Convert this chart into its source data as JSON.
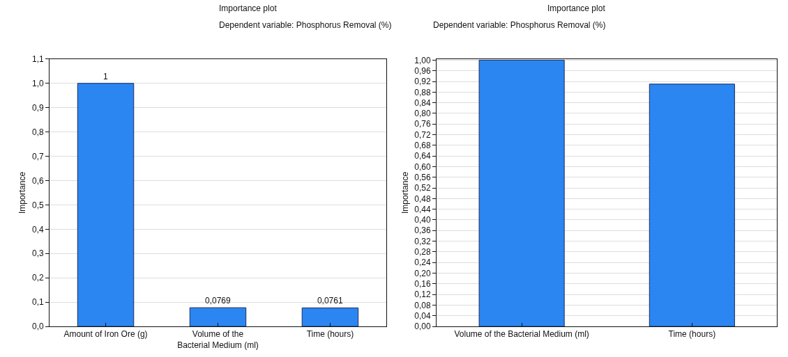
{
  "chart_data": [
    {
      "type": "bar",
      "title": "Importance plot",
      "subtitle": "Dependent variable: Phosphorus Removal (%)",
      "ylabel": "Importance",
      "categories": [
        "Amount of Iron Ore (g)",
        "Volume of the Bacterial Medium (ml)",
        "Time (hours)"
      ],
      "values": [
        1,
        0.0769,
        0.0761
      ],
      "value_labels": [
        "1",
        "0,0769",
        "0,0761"
      ],
      "color": "#2b86f2",
      "ylim": [
        0,
        1.1
      ],
      "yticks": [
        {
          "value": 0,
          "label": "0,0"
        },
        {
          "value": 0.1,
          "label": "0,1"
        },
        {
          "value": 0.2,
          "label": "0,2"
        },
        {
          "value": 0.3,
          "label": "0,3"
        },
        {
          "value": 0.4,
          "label": "0,4"
        },
        {
          "value": 0.5,
          "label": "0,5"
        },
        {
          "value": 0.6,
          "label": "0,6"
        },
        {
          "value": 0.7,
          "label": "0,7"
        },
        {
          "value": 0.8,
          "label": "0,8"
        },
        {
          "value": 0.9,
          "label": "0,9"
        },
        {
          "value": 1.0,
          "label": "1,0"
        },
        {
          "value": 1.1,
          "label": "1,1"
        }
      ],
      "grid": "y"
    },
    {
      "type": "bar",
      "title": "Importance plot",
      "subtitle": "Dependent variable: Phosphorus Removal (%)",
      "ylabel": "Importance",
      "categories": [
        "Volume of the Bacterial Medium (ml)",
        "Time (hours)"
      ],
      "values": [
        1.0,
        0.91
      ],
      "color": "#2b86f2",
      "ylim": [
        0,
        1.004
      ],
      "yticks": [
        {
          "value": 0,
          "label": "0,00"
        },
        {
          "value": 0.04,
          "label": "0,04"
        },
        {
          "value": 0.08,
          "label": "0,08"
        },
        {
          "value": 0.12,
          "label": "0,12"
        },
        {
          "value": 0.16,
          "label": "0,16"
        },
        {
          "value": 0.2,
          "label": "0,20"
        },
        {
          "value": 0.24,
          "label": "0,24"
        },
        {
          "value": 0.28,
          "label": "0,28"
        },
        {
          "value": 0.32,
          "label": "0,32"
        },
        {
          "value": 0.36,
          "label": "0,36"
        },
        {
          "value": 0.4,
          "label": "0,40"
        },
        {
          "value": 0.44,
          "label": "0,44"
        },
        {
          "value": 0.48,
          "label": "0,48"
        },
        {
          "value": 0.52,
          "label": "0,52"
        },
        {
          "value": 0.56,
          "label": "0,56"
        },
        {
          "value": 0.6,
          "label": "0,60"
        },
        {
          "value": 0.64,
          "label": "0,64"
        },
        {
          "value": 0.68,
          "label": "0,68"
        },
        {
          "value": 0.72,
          "label": "0,72"
        },
        {
          "value": 0.76,
          "label": "0,76"
        },
        {
          "value": 0.8,
          "label": "0,80"
        },
        {
          "value": 0.84,
          "label": "0,84"
        },
        {
          "value": 0.88,
          "label": "0,88"
        },
        {
          "value": 0.92,
          "label": "0,92"
        },
        {
          "value": 0.96,
          "label": "0,96"
        },
        {
          "value": 1.0,
          "label": "1,00"
        }
      ],
      "grid": "y"
    }
  ]
}
